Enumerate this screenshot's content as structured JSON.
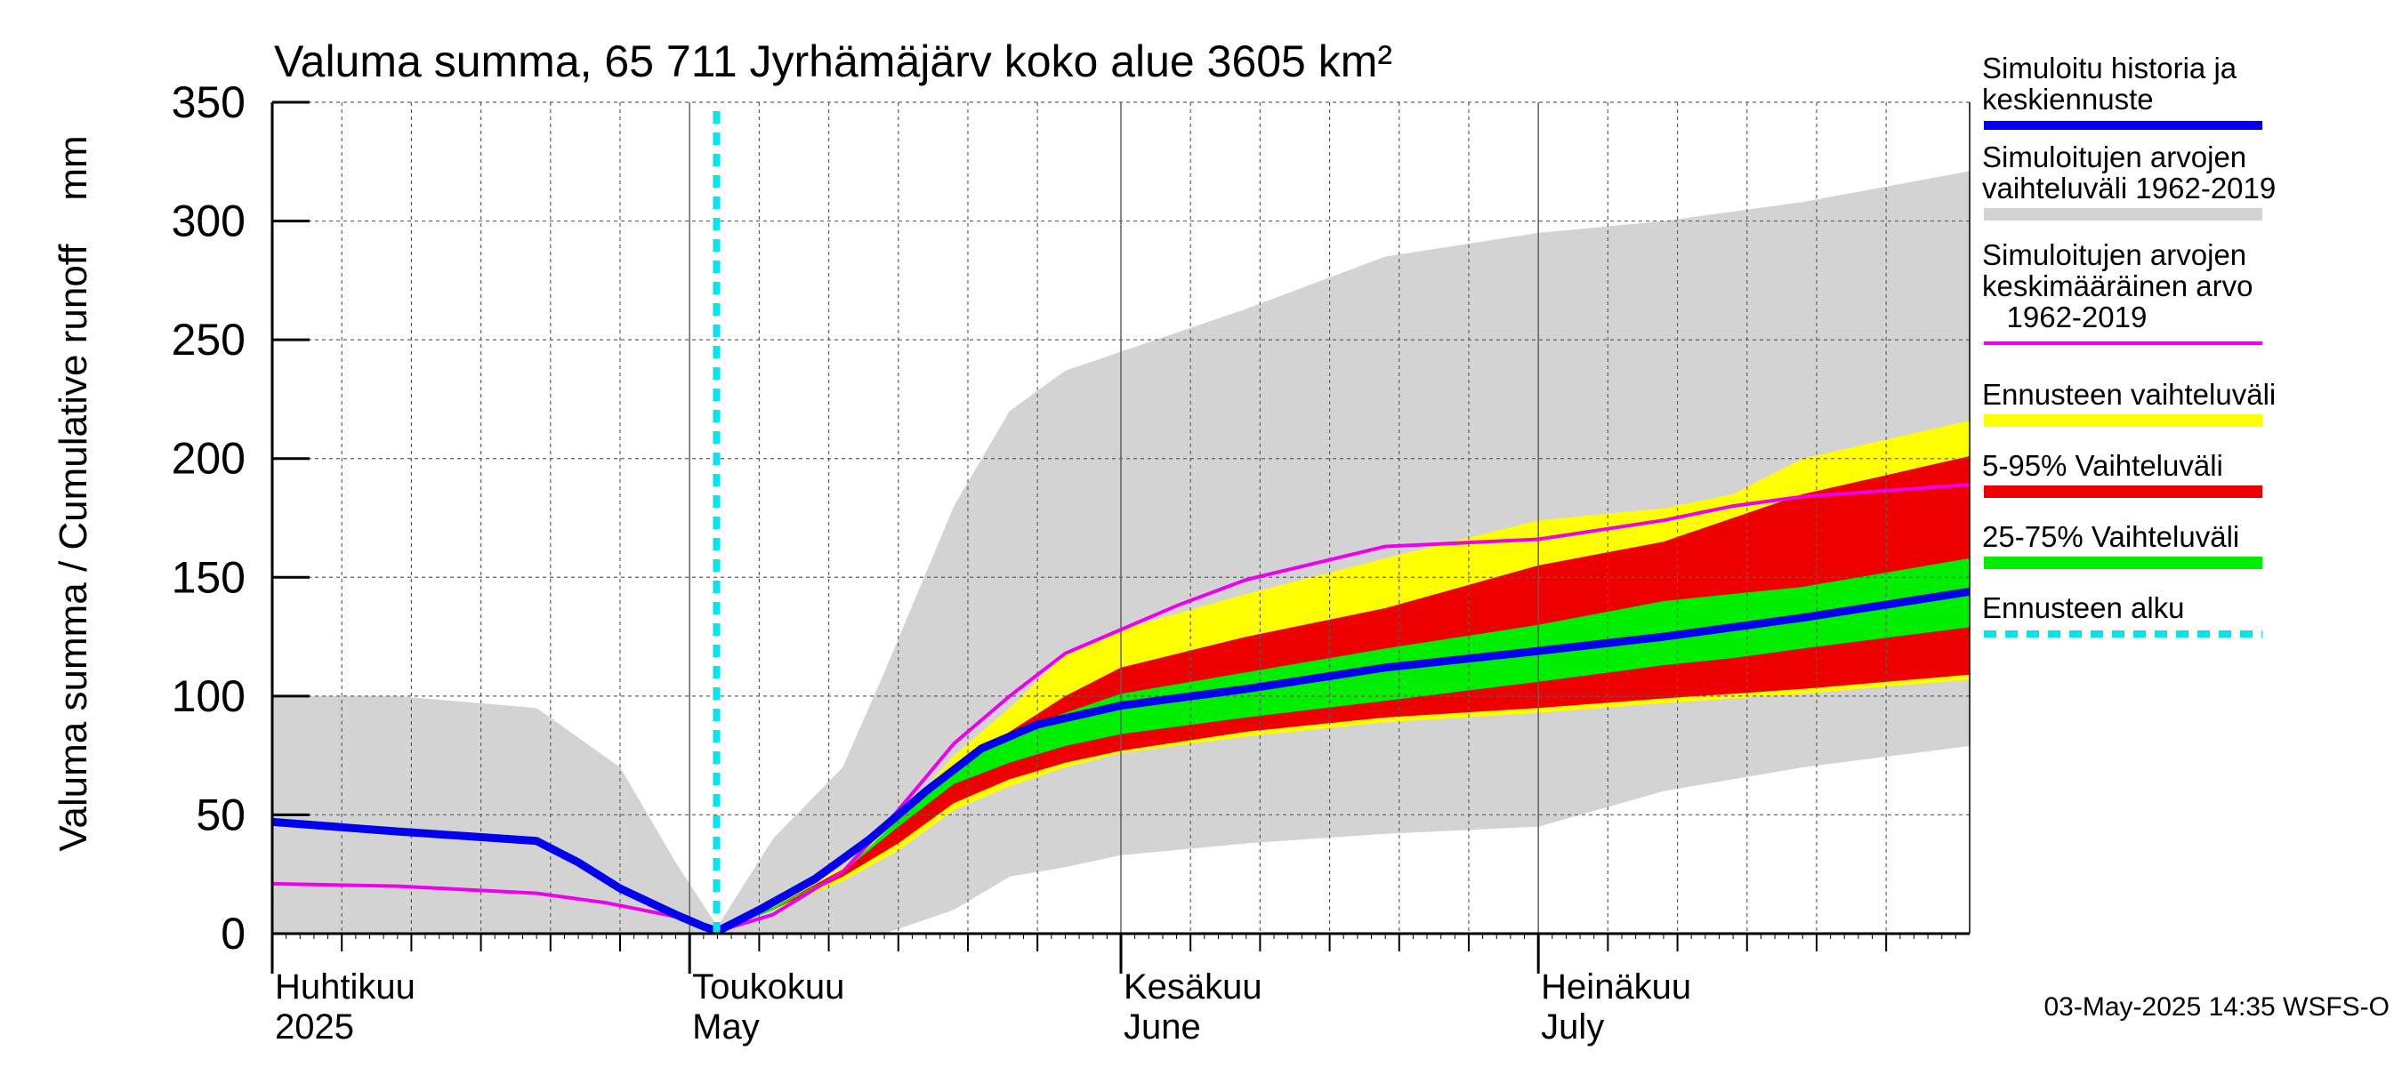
{
  "chart_data": {
    "type": "area",
    "title": "Valuma summa, 65 711 Jyrhämäjärv koko alue 3605 km²",
    "ylabel": "Valuma summa / Cumulative runoff    mm",
    "ylim": [
      0,
      350
    ],
    "yticks": [
      0,
      50,
      100,
      150,
      200,
      250,
      300,
      350
    ],
    "xlim": [
      "2025-04-01",
      "2025-08-01"
    ],
    "grid": true,
    "legend_position": "right",
    "month_labels": [
      {
        "date": "2025-04-01",
        "fi": "Huhtikuu",
        "en": "2025"
      },
      {
        "date": "2025-05-01",
        "fi": "Toukokuu",
        "en": "May"
      },
      {
        "date": "2025-06-01",
        "fi": "Kesäkuu",
        "en": "June"
      },
      {
        "date": "2025-07-01",
        "fi": "Heinäkuu",
        "en": "July"
      }
    ],
    "forecast_start": "2025-05-03",
    "footer": "03-May-2025 14:35 WSFS-O",
    "colors": {
      "history": "#0000ee",
      "range_all": "#d3d3d3",
      "mean": "#ee00ee",
      "forecast_range": "#ffff00",
      "p5_95": "#ee0000",
      "p25_75": "#00ee00",
      "forecast_start": "#00e5ee"
    },
    "legend": [
      {
        "label_lines": [
          "Simuloitu historia ja",
          "keskiennuste"
        ],
        "color": "#0000ee",
        "style": "line"
      },
      {
        "label_lines": [
          "Simuloitujen arvojen",
          "vaihteluväli 1962-2019"
        ],
        "color": "#d3d3d3",
        "style": "band"
      },
      {
        "label_lines": [
          "Simuloitujen arvojen",
          "keskimääräinen arvo",
          "   1962-2019"
        ],
        "color": "#ee00ee",
        "style": "thin"
      },
      {
        "label_lines": [
          "Ennusteen vaihteluväli"
        ],
        "color": "#ffff00",
        "style": "band"
      },
      {
        "label_lines": [
          "5-95% Vaihteluväli"
        ],
        "color": "#ee0000",
        "style": "band"
      },
      {
        "label_lines": [
          "25-75% Vaihteluväli"
        ],
        "color": "#00ee00",
        "style": "band"
      },
      {
        "label_lines": [
          "Ennusteen alku"
        ],
        "color": "#00e5ee",
        "style": "dash"
      }
    ],
    "series": [
      {
        "name": "Simuloitu historia ja keskiennuste",
        "x": [
          "2025-04-01",
          "2025-04-10",
          "2025-04-20",
          "2025-04-23",
          "2025-04-26",
          "2025-04-30",
          "2025-05-02",
          "2025-05-03",
          "2025-05-06",
          "2025-05-10",
          "2025-05-14",
          "2025-05-18",
          "2025-05-22",
          "2025-05-26",
          "2025-06-01",
          "2025-06-10",
          "2025-06-20",
          "2025-07-01",
          "2025-07-10",
          "2025-07-20",
          "2025-08-01"
        ],
        "values": [
          47,
          43,
          39,
          30,
          19,
          8,
          3,
          1,
          10,
          23,
          40,
          60,
          78,
          88,
          96,
          103,
          112,
          119,
          125,
          133,
          144
        ]
      },
      {
        "name": "Simuloitujen arvojen keskimääräinen arvo 1962-2019",
        "x": [
          "2025-04-01",
          "2025-04-10",
          "2025-04-20",
          "2025-04-25",
          "2025-05-01",
          "2025-05-03",
          "2025-05-07",
          "2025-05-12",
          "2025-05-15",
          "2025-05-20",
          "2025-05-24",
          "2025-05-28",
          "2025-06-01",
          "2025-06-05",
          "2025-06-10",
          "2025-06-20",
          "2025-07-01",
          "2025-07-10",
          "2025-07-15",
          "2025-07-20",
          "2025-08-01"
        ],
        "values": [
          21,
          20,
          17,
          13,
          6,
          1,
          8,
          26,
          45,
          80,
          100,
          118,
          128,
          138,
          149,
          163,
          166,
          174,
          180,
          184,
          189
        ]
      }
    ],
    "bands": [
      {
        "name": "Simuloitujen arvojen vaihteluväli 1962-2019",
        "x": [
          "2025-04-01",
          "2025-04-10",
          "2025-04-20",
          "2025-04-26",
          "2025-04-30",
          "2025-05-03",
          "2025-05-07",
          "2025-05-12",
          "2025-05-15",
          "2025-05-20",
          "2025-05-24",
          "2025-05-28",
          "2025-06-01",
          "2025-06-10",
          "2025-06-20",
          "2025-07-01",
          "2025-07-10",
          "2025-07-20",
          "2025-08-01"
        ],
        "low": [
          0,
          0,
          0,
          0,
          0,
          0,
          0,
          0,
          0,
          10,
          24,
          28,
          33,
          38,
          42,
          45,
          60,
          70,
          79
        ],
        "high": [
          100,
          100,
          95,
          70,
          30,
          3,
          40,
          70,
          110,
          180,
          220,
          237,
          245,
          263,
          285,
          295,
          300,
          308,
          321
        ]
      },
      {
        "name": "Ennusteen vaihteluväli",
        "x": [
          "2025-05-03",
          "2025-05-07",
          "2025-05-12",
          "2025-05-16",
          "2025-05-20",
          "2025-05-24",
          "2025-05-28",
          "2025-06-01",
          "2025-06-10",
          "2025-06-20",
          "2025-07-01",
          "2025-07-10",
          "2025-07-15",
          "2025-07-20",
          "2025-08-01"
        ],
        "low": [
          1,
          10,
          22,
          35,
          52,
          62,
          70,
          76,
          83,
          89,
          93,
          97,
          99,
          101,
          107
        ],
        "high": [
          1,
          12,
          28,
          48,
          75,
          95,
          118,
          128,
          143,
          158,
          174,
          179,
          185,
          200,
          216
        ]
      },
      {
        "name": "5-95% Vaihteluväli",
        "x": [
          "2025-05-03",
          "2025-05-07",
          "2025-05-12",
          "2025-05-16",
          "2025-05-20",
          "2025-05-24",
          "2025-05-28",
          "2025-06-01",
          "2025-06-10",
          "2025-06-20",
          "2025-07-01",
          "2025-07-10",
          "2025-07-15",
          "2025-07-20",
          "2025-08-01"
        ],
        "low": [
          1,
          10,
          24,
          38,
          55,
          65,
          72,
          77,
          85,
          91,
          95,
          99,
          101,
          103,
          109
        ],
        "high": [
          1,
          11,
          27,
          46,
          68,
          85,
          100,
          112,
          125,
          137,
          155,
          165,
          175,
          185,
          201
        ]
      },
      {
        "name": "25-75% Vaihteluväli",
        "x": [
          "2025-05-03",
          "2025-05-07",
          "2025-05-12",
          "2025-05-16",
          "2025-05-20",
          "2025-05-24",
          "2025-05-28",
          "2025-06-01",
          "2025-06-10",
          "2025-06-20",
          "2025-07-01",
          "2025-07-10",
          "2025-07-15",
          "2025-07-20",
          "2025-08-01"
        ],
        "low": [
          1,
          10,
          26,
          45,
          63,
          72,
          79,
          84,
          91,
          98,
          106,
          113,
          116,
          120,
          129
        ],
        "high": [
          1,
          11,
          26,
          48,
          70,
          84,
          93,
          101,
          110,
          120,
          130,
          140,
          143,
          146,
          158
        ]
      }
    ]
  }
}
